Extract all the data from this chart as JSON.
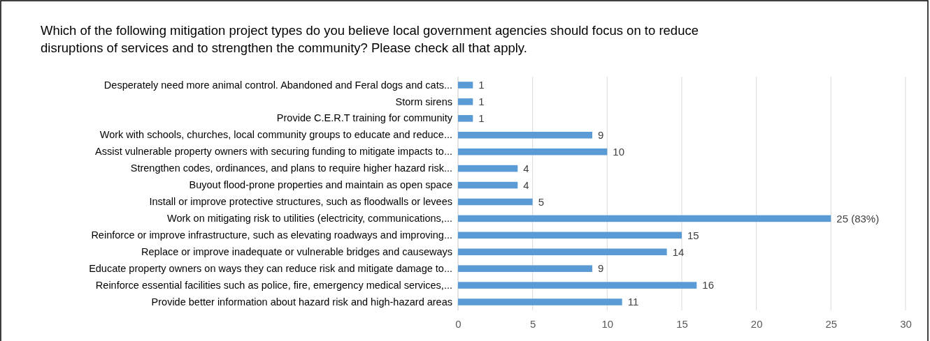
{
  "chart_data": {
    "type": "bar",
    "orientation": "horizontal",
    "title": "Which of the following mitigation project types do you believe local government agencies should focus on to reduce disruptions of services and to strengthen the community? Please check all that apply.",
    "categories": [
      "Desperately need more animal control.  Abandoned and Feral dogs and cats...",
      "Storm sirens",
      "Provide C.E.R.T training for community",
      "Work with schools, churches, local community groups to educate and reduce...",
      "Assist vulnerable property owners with securing funding to mitigate impacts to...",
      "Strengthen codes, ordinances, and plans to require higher hazard risk...",
      "Buyout flood-prone properties and maintain as open space",
      "Install or improve protective structures, such as floodwalls or levees",
      "Work on mitigating risk to utilities (electricity, communications,...",
      "Reinforce or improve infrastructure, such as elevating roadways and improving...",
      "Replace or improve inadequate or vulnerable bridges and causeways",
      "Educate property owners on ways they can reduce risk and mitigate damage to...",
      "Reinforce essential facilities such as police, fire, emergency medical services,...",
      "Provide better information about hazard risk and high-hazard areas"
    ],
    "values": [
      1,
      1,
      1,
      9,
      10,
      4,
      4,
      5,
      25,
      15,
      14,
      9,
      16,
      11
    ],
    "value_labels": [
      "1",
      "1",
      "1",
      "9",
      "10",
      "4",
      "4",
      "5",
      "25 (83%)",
      "15",
      "14",
      "9",
      "16",
      "11"
    ],
    "color": "#5b9bd5",
    "xlim": [
      0,
      30
    ],
    "xticks": [
      0,
      5,
      10,
      15,
      20,
      25,
      30
    ],
    "grid": "x"
  }
}
